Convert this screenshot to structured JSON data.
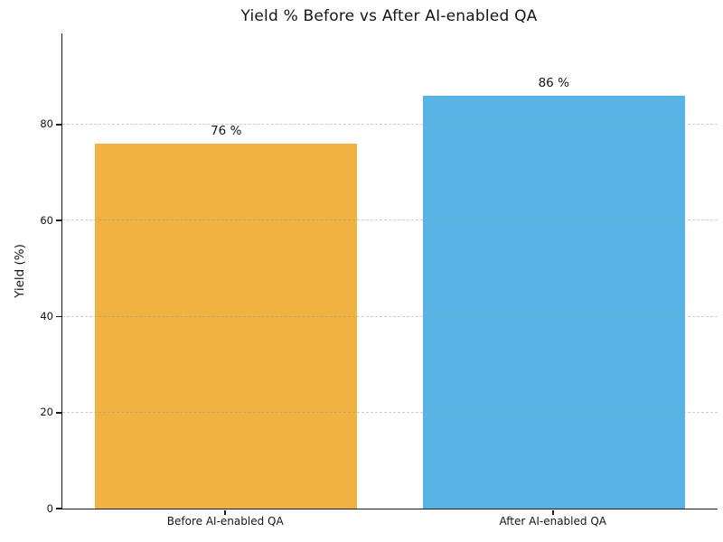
{
  "chart_data": {
    "type": "bar",
    "title": "Yield % Before vs After AI-enabled QA",
    "categories": [
      "Before AI-enabled QA",
      "After AI-enabled QA"
    ],
    "values": [
      76,
      86
    ],
    "value_labels": [
      "76 %",
      "86 %"
    ],
    "bar_colors": [
      "#f0b341",
      "#56b3e3"
    ],
    "xlabel": "",
    "ylabel": "Yield (%)",
    "ylim": [
      0,
      99
    ],
    "yticks": [
      0,
      20,
      40,
      60,
      80
    ],
    "ytick_labels": [
      "0",
      "20",
      "40",
      "60",
      "80"
    ],
    "grid": "horizontal-dashed",
    "grid_color": "#c2c2c2",
    "legend_position": "none",
    "bar_relative_width": 0.8
  },
  "style": {
    "background_color": "#ffffff",
    "axis_color": "#1a1a1a",
    "text_color": "#151515"
  }
}
